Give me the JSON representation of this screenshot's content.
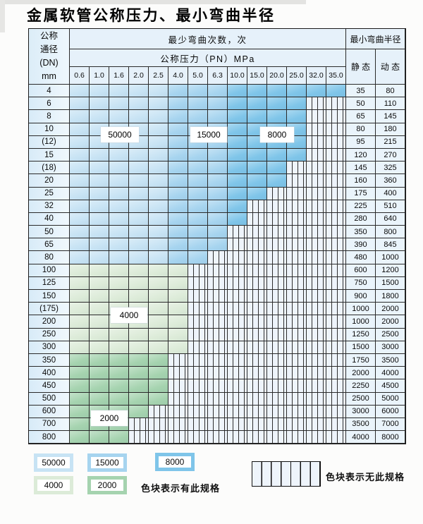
{
  "title": "金属软管公称压力、最小弯曲半径",
  "table": {
    "header": {
      "dn_lines": [
        "公称",
        "通径",
        "(DN)",
        "mm"
      ],
      "bend_cycles": "最少弯曲次数，次",
      "pressure": "公称压力（PN）MPa",
      "min_radius": "最小弯曲半径",
      "static": "静 态",
      "dynamic": "动 态",
      "pressure_values": [
        "0.6",
        "1.0",
        "1.6",
        "2.0",
        "2.5",
        "4.0",
        "5.0",
        "6.3",
        "10.0",
        "15.0",
        "20.0",
        "25.0",
        "32.0",
        "35.0"
      ]
    },
    "zones": {
      "light_blue_max_col": 5,
      "medium_blue_max_col": 8
    },
    "overlay_labels": [
      {
        "text": "50000"
      },
      {
        "text": "15000"
      },
      {
        "text": "8000"
      },
      {
        "text": "4000"
      },
      {
        "text": "2000"
      }
    ],
    "rows": [
      {
        "dn": "4",
        "extent": 14,
        "band": "blue",
        "max_pn": "35.0",
        "static": "35",
        "dynamic": "80"
      },
      {
        "dn": "6",
        "extent": 12,
        "band": "blue",
        "max_pn": "25.0",
        "static": "50",
        "dynamic": "110"
      },
      {
        "dn": "8",
        "extent": 12,
        "band": "blue",
        "max_pn": "25.0",
        "static": "65",
        "dynamic": "145"
      },
      {
        "dn": "10",
        "extent": 12,
        "band": "blue",
        "max_pn": "25.0",
        "static": "80",
        "dynamic": "180"
      },
      {
        "dn": "(12)",
        "extent": 12,
        "band": "blue",
        "max_pn": "25.0",
        "static": "95",
        "dynamic": "215"
      },
      {
        "dn": "15",
        "extent": 12,
        "band": "blue",
        "max_pn": "25.0",
        "static": "120",
        "dynamic": "270"
      },
      {
        "dn": "(18)",
        "extent": 11,
        "band": "blue",
        "max_pn": "20.0",
        "static": "145",
        "dynamic": "325"
      },
      {
        "dn": "20",
        "extent": 11,
        "band": "blue",
        "max_pn": "20.0",
        "static": "160",
        "dynamic": "360"
      },
      {
        "dn": "25",
        "extent": 10,
        "band": "blue",
        "max_pn": "15.0",
        "static": "175",
        "dynamic": "400"
      },
      {
        "dn": "32",
        "extent": 9,
        "band": "blue",
        "max_pn": "10.0",
        "static": "225",
        "dynamic": "510"
      },
      {
        "dn": "40",
        "extent": 9,
        "band": "blue",
        "max_pn": "10.0",
        "static": "280",
        "dynamic": "640"
      },
      {
        "dn": "50",
        "extent": 8,
        "band": "blue",
        "max_pn": "6.3",
        "static": "350",
        "dynamic": "800"
      },
      {
        "dn": "65",
        "extent": 8,
        "band": "blue",
        "max_pn": "6.3",
        "static": "390",
        "dynamic": "845"
      },
      {
        "dn": "80",
        "extent": 7,
        "band": "blue",
        "max_pn": "5.0",
        "static": "480",
        "dynamic": "1000"
      },
      {
        "dn": "100",
        "extent": 6,
        "band": "light_green",
        "max_pn": "4.0",
        "static": "600",
        "dynamic": "1200"
      },
      {
        "dn": "125",
        "extent": 6,
        "band": "light_green",
        "max_pn": "4.0",
        "static": "750",
        "dynamic": "1500"
      },
      {
        "dn": "150",
        "extent": 6,
        "band": "light_green",
        "max_pn": "4.0",
        "static": "900",
        "dynamic": "1800"
      },
      {
        "dn": "(175)",
        "extent": 6,
        "band": "light_green",
        "max_pn": "4.0",
        "static": "1000",
        "dynamic": "2000"
      },
      {
        "dn": "200",
        "extent": 6,
        "band": "light_green",
        "max_pn": "4.0",
        "static": "1000",
        "dynamic": "2000"
      },
      {
        "dn": "250",
        "extent": 6,
        "band": "light_green",
        "max_pn": "4.0",
        "static": "1250",
        "dynamic": "2500"
      },
      {
        "dn": "300",
        "extent": 6,
        "band": "light_green",
        "max_pn": "4.0",
        "static": "1500",
        "dynamic": "3000"
      },
      {
        "dn": "350",
        "extent": 5,
        "band": "medium_green",
        "max_pn": "2.5",
        "static": "1750",
        "dynamic": "3500"
      },
      {
        "dn": "400",
        "extent": 5,
        "band": "medium_green",
        "max_pn": "2.5",
        "static": "2000",
        "dynamic": "4000"
      },
      {
        "dn": "450",
        "extent": 5,
        "band": "medium_green",
        "max_pn": "2.5",
        "static": "2250",
        "dynamic": "4500"
      },
      {
        "dn": "500",
        "extent": 5,
        "band": "medium_green",
        "max_pn": "2.5",
        "static": "2500",
        "dynamic": "5000"
      },
      {
        "dn": "600",
        "extent": 4,
        "band": "medium_green",
        "max_pn": "2.0",
        "static": "3000",
        "dynamic": "6000"
      },
      {
        "dn": "700",
        "extent": 3,
        "band": "medium_green",
        "max_pn": "1.6",
        "static": "3500",
        "dynamic": "7000"
      },
      {
        "dn": "800",
        "extent": 3,
        "band": "medium_green",
        "max_pn": "1.6",
        "static": "4000",
        "dynamic": "8000"
      }
    ]
  },
  "legend": {
    "swatches": [
      {
        "text": "50000",
        "color_key": "light_blue"
      },
      {
        "text": "15000",
        "color_key": "medium_blue"
      },
      {
        "text": "8000",
        "color_key": "dark_blue"
      },
      {
        "text": "4000",
        "color_key": "light_green"
      },
      {
        "text": "2000",
        "color_key": "medium_green"
      }
    ],
    "has_spec_text": "色块表示有此规格",
    "no_spec_text": "色块表示无此规格"
  },
  "colors": {
    "light_blue": "#c7e3f4",
    "medium_blue": "#a6d4ef",
    "dark_blue": "#7fc5e9",
    "light_green": "#dcebd8",
    "medium_green": "#a5d3af",
    "hatch_bg": "#eef4fb",
    "border": "#2a2a2a"
  },
  "chart_data": {
    "type": "table",
    "title": "金属软管公称压力、最小弯曲半径",
    "x_axis_label": "公称压力（PN）MPa",
    "x_categories": [
      0.6,
      1.0,
      1.6,
      2.0,
      2.5,
      4.0,
      5.0,
      6.3,
      10.0,
      15.0,
      20.0,
      25.0,
      32.0,
      35.0
    ],
    "y_axis_label": "公称通径 (DN) mm",
    "y_categories": [
      "4",
      "6",
      "8",
      "10",
      "(12)",
      "15",
      "(18)",
      "20",
      "25",
      "32",
      "40",
      "50",
      "65",
      "80",
      "100",
      "125",
      "150",
      "(175)",
      "200",
      "250",
      "300",
      "350",
      "400",
      "450",
      "500",
      "600",
      "700",
      "800"
    ],
    "cell_coding_legend": {
      "colored": "色块表示有此规格",
      "hatched": "色块表示无此规格"
    },
    "bend_cycle_zones": [
      {
        "cycles": 50000,
        "color": "#c7e3f4",
        "applies_to": "DN 4–80, PN 0.6–2.5 MPa"
      },
      {
        "cycles": 15000,
        "color": "#a6d4ef",
        "applies_to": "DN 4–80, PN 4.0–6.3 MPa"
      },
      {
        "cycles": 8000,
        "color": "#7fc5e9",
        "applies_to": "DN 4–80, PN 10.0–35.0 MPa"
      },
      {
        "cycles": 4000,
        "color": "#dcebd8",
        "applies_to": "DN 100–300, PN 0.6–4.0 MPa"
      },
      {
        "cycles": 2000,
        "color": "#a5d3af",
        "applies_to": "DN 350–800, PN 0.6–2.5 MPa (max varies)"
      }
    ],
    "max_available_pn_per_dn": [
      35.0,
      25.0,
      25.0,
      25.0,
      25.0,
      25.0,
      20.0,
      20.0,
      15.0,
      10.0,
      10.0,
      6.3,
      6.3,
      5.0,
      4.0,
      4.0,
      4.0,
      4.0,
      4.0,
      4.0,
      4.0,
      2.5,
      2.5,
      2.5,
      2.5,
      2.0,
      1.6,
      1.6
    ],
    "series": [
      {
        "name": "最小弯曲半径 静态",
        "values": [
          35,
          50,
          65,
          80,
          95,
          120,
          145,
          160,
          175,
          225,
          280,
          350,
          390,
          480,
          600,
          750,
          900,
          1000,
          1000,
          1250,
          1500,
          1750,
          2000,
          2250,
          2500,
          3000,
          3500,
          4000
        ]
      },
      {
        "name": "最小弯曲半径 动态",
        "values": [
          80,
          110,
          145,
          180,
          215,
          270,
          325,
          360,
          400,
          510,
          640,
          800,
          845,
          1000,
          1200,
          1500,
          1800,
          2000,
          2000,
          2500,
          3000,
          3500,
          4000,
          4500,
          5000,
          6000,
          7000,
          8000
        ]
      }
    ]
  }
}
